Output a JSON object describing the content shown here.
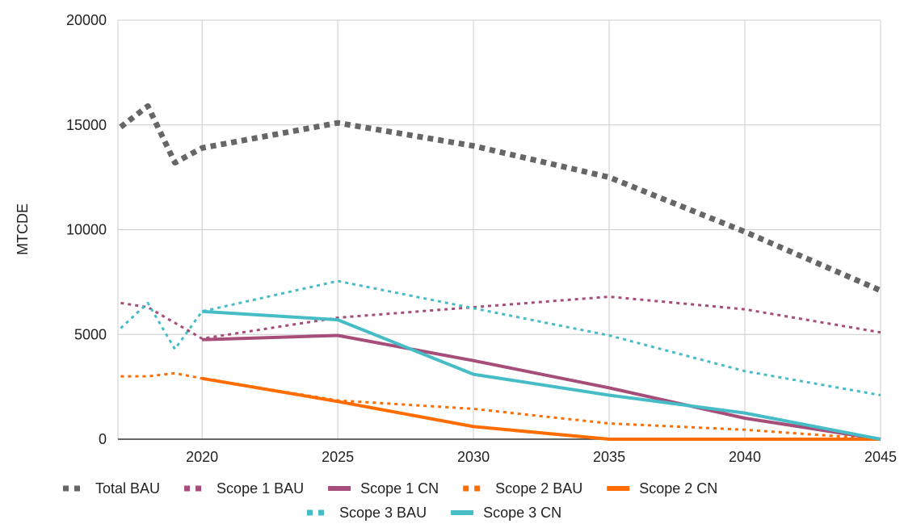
{
  "chart_data": {
    "type": "line",
    "title": "",
    "xlabel": "",
    "ylabel": "MTCDE",
    "xlim": [
      2016.9,
      2045
    ],
    "ylim": [
      0,
      20000
    ],
    "x_ticks": [
      2020,
      2025,
      2030,
      2035,
      2040,
      2045
    ],
    "y_ticks": [
      0,
      5000,
      10000,
      15000,
      20000
    ],
    "grid": true,
    "legend_position": "bottom",
    "series": [
      {
        "name": "Total BAU",
        "color": "#666666",
        "style": "thick-dotted",
        "points": [
          [
            2017,
            14900
          ],
          [
            2018,
            15900
          ],
          [
            2019,
            13200
          ],
          [
            2020,
            13900
          ],
          [
            2025,
            15100
          ],
          [
            2030,
            14000
          ],
          [
            2035,
            12500
          ],
          [
            2040,
            9900
          ],
          [
            2045,
            7100
          ]
        ]
      },
      {
        "name": "Scope 1 BAU",
        "color": "#A64D79",
        "style": "dotted",
        "points": [
          [
            2017,
            6500
          ],
          [
            2018,
            6300
          ],
          [
            2020,
            4800
          ],
          [
            2025,
            5800
          ],
          [
            2030,
            6300
          ],
          [
            2035,
            6800
          ],
          [
            2040,
            6200
          ],
          [
            2045,
            5100
          ]
        ]
      },
      {
        "name": "Scope 1 CN",
        "color": "#A64D79",
        "style": "solid",
        "points": [
          [
            2020,
            4750
          ],
          [
            2025,
            4950
          ],
          [
            2030,
            3750
          ],
          [
            2035,
            2450
          ],
          [
            2040,
            1000
          ],
          [
            2045,
            0
          ]
        ]
      },
      {
        "name": "Scope 2 BAU",
        "color": "#FF6D01",
        "style": "dotted",
        "points": [
          [
            2017,
            3000
          ],
          [
            2018,
            3000
          ],
          [
            2019,
            3150
          ],
          [
            2020,
            2900
          ],
          [
            2025,
            1850
          ],
          [
            2030,
            1450
          ],
          [
            2035,
            750
          ],
          [
            2040,
            450
          ],
          [
            2045,
            0
          ]
        ]
      },
      {
        "name": "Scope 2 CN",
        "color": "#FF6D01",
        "style": "solid",
        "points": [
          [
            2020,
            2900
          ],
          [
            2025,
            1800
          ],
          [
            2030,
            600
          ],
          [
            2035,
            0
          ],
          [
            2040,
            0
          ],
          [
            2045,
            0
          ]
        ]
      },
      {
        "name": "Scope 3 BAU",
        "color": "#46BDC6",
        "style": "dotted",
        "points": [
          [
            2017,
            5300
          ],
          [
            2018,
            6500
          ],
          [
            2019,
            4300
          ],
          [
            2020,
            6100
          ],
          [
            2025,
            7550
          ],
          [
            2030,
            6250
          ],
          [
            2035,
            4950
          ],
          [
            2040,
            3250
          ],
          [
            2045,
            2100
          ]
        ]
      },
      {
        "name": "Scope 3 CN",
        "color": "#46BDC6",
        "style": "solid",
        "points": [
          [
            2020,
            6100
          ],
          [
            2025,
            5700
          ],
          [
            2030,
            3100
          ],
          [
            2035,
            2100
          ],
          [
            2040,
            1250
          ],
          [
            2045,
            0
          ]
        ]
      }
    ]
  }
}
